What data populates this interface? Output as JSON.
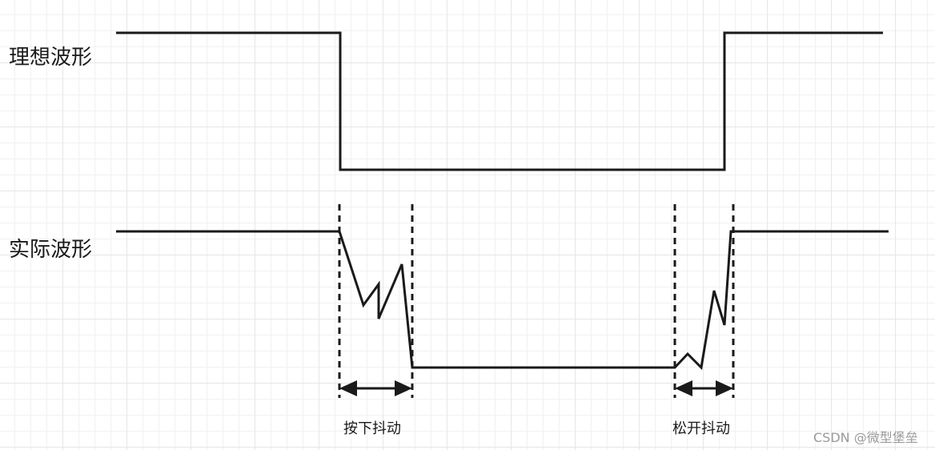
{
  "labels": {
    "ideal_waveform": "理想波形",
    "actual_waveform": "实际波形",
    "press_bounce": "按下抖动",
    "release_bounce": "松开抖动"
  },
  "watermark": "CSDN @微型堡垒",
  "colors": {
    "line": "#1a1a1a",
    "grid": "#e6e6e6",
    "watermark": "#9a9a9a"
  }
}
